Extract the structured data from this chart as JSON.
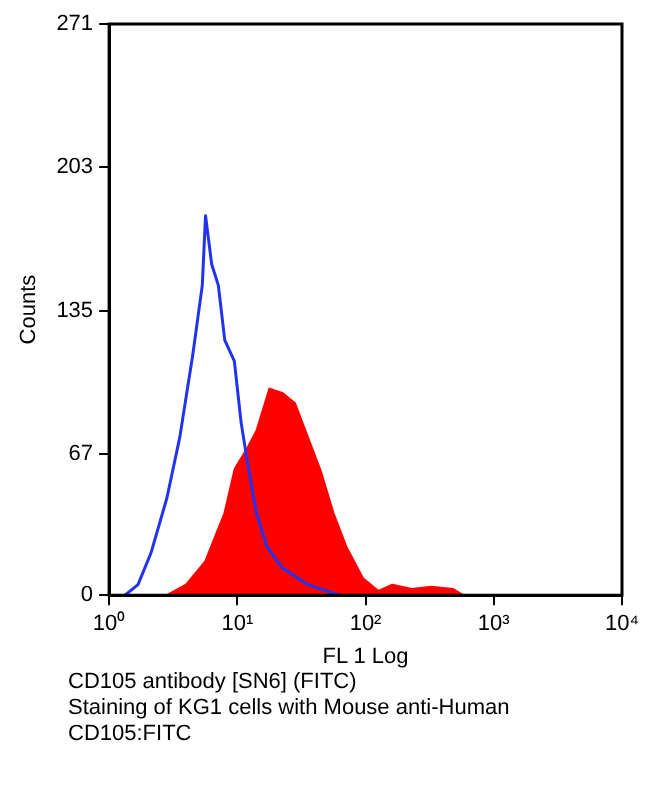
{
  "chart_data": {
    "type": "area",
    "xlabel": "FL 1 Log",
    "ylabel": "Counts",
    "log": "x",
    "xlim": [
      1,
      10000
    ],
    "xticks": [
      {
        "value": 1,
        "label": "10⁰"
      },
      {
        "value": 10,
        "label": "10¹"
      },
      {
        "value": 100,
        "label": "10²"
      },
      {
        "value": 1000,
        "label": "10³"
      },
      {
        "value": 10000,
        "label": "10⁴"
      }
    ],
    "ylim": [
      0,
      271
    ],
    "yticks": [
      0,
      67,
      135,
      203,
      271
    ],
    "grid": false,
    "legend": false,
    "marker": "none",
    "series": [
      {
        "type": "line",
        "color": "#2233ee",
        "x": [
          1.33,
          1.68,
          2.12,
          2.82,
          3.56,
          4.49,
          5.33,
          5.65,
          6.31,
          7.11,
          7.98,
          9.48,
          10.7,
          12.0,
          14.1,
          17.0,
          22.4,
          35.5,
          63.1
        ],
        "values": [
          0,
          5,
          20,
          46,
          75,
          114,
          147,
          180,
          157,
          147,
          121,
          111,
          82,
          63,
          39,
          23,
          13,
          5,
          0
        ]
      },
      {
        "type": "area",
        "color": "#ff0000",
        "x": [
          2.82,
          3.98,
          5.62,
          7.94,
          9.55,
          12.0,
          14.1,
          17.8,
          22.4,
          28.2,
          35.5,
          44.7,
          56.2,
          70.8,
          95.5,
          126,
          162,
          229,
          324,
          479,
          575
        ],
        "values": [
          0,
          5,
          16,
          39,
          60,
          70,
          78,
          98,
          96,
          91,
          75,
          59,
          39,
          23,
          8,
          2,
          5,
          3,
          4,
          3,
          0
        ]
      }
    ],
    "annotations": [
      "CD105 antibody [SN6] (FITC)",
      "Staining of KG1 cells with Mouse anti-Human CD105:FITC"
    ]
  }
}
